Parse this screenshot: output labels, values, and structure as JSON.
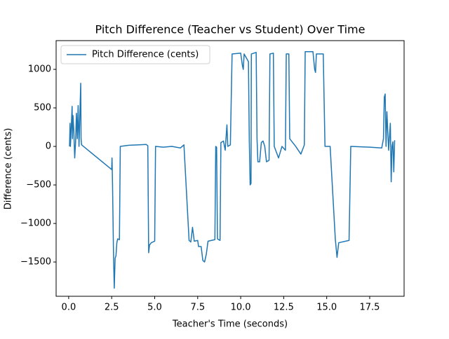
{
  "chart_data": {
    "type": "line",
    "title": "Pitch Difference (Teacher vs Student) Over Time",
    "x_label": "Teacher's Time (seconds)",
    "y_label": "Difference (cents)",
    "legend": "upper left",
    "x": [
      0.05,
      0.08,
      0.1,
      0.15,
      0.2,
      0.22,
      0.25,
      0.3,
      0.35,
      0.4,
      0.45,
      0.5,
      0.55,
      0.6,
      0.65,
      0.7,
      0.72,
      0.75,
      2.5,
      2.52,
      2.55,
      2.6,
      2.62,
      2.65,
      2.7,
      2.75,
      2.8,
      2.85,
      2.95,
      3.0,
      3.5,
      4.0,
      4.5,
      4.6,
      4.65,
      4.7,
      4.8,
      5.0,
      5.05,
      5.5,
      6.0,
      6.5,
      6.7,
      7.0,
      7.1,
      7.2,
      7.3,
      7.5,
      7.55,
      7.7,
      7.8,
      7.9,
      8.0,
      8.1,
      8.5,
      8.55,
      8.6,
      8.65,
      8.8,
      8.85,
      9.0,
      9.1,
      9.2,
      9.25,
      9.4,
      9.5,
      10.0,
      10.1,
      10.15,
      10.2,
      10.45,
      10.5,
      10.55,
      10.6,
      10.62,
      10.9,
      10.95,
      11.0,
      11.1,
      11.2,
      11.3,
      11.4,
      11.5,
      11.65,
      11.7,
      11.9,
      11.95,
      12.2,
      12.4,
      12.6,
      12.65,
      12.8,
      12.85,
      13.2,
      13.5,
      13.7,
      13.75,
      14.2,
      14.3,
      14.35,
      14.4,
      14.8,
      14.9,
      15.2,
      15.5,
      15.6,
      15.7,
      16.3,
      16.4,
      17.5,
      18.2,
      18.3,
      18.35,
      18.4,
      18.45,
      18.5,
      18.6,
      18.7,
      18.75,
      18.8,
      18.85,
      18.9,
      18.95
    ],
    "series": [
      {
        "name": "Pitch Difference (cents)",
        "color": "#1f77b4",
        "values": [
          0,
          300,
          0,
          250,
          520,
          100,
          400,
          200,
          -150,
          50,
          430,
          100,
          530,
          0,
          400,
          820,
          100,
          20,
          -300,
          -150,
          -500,
          -1300,
          -1550,
          -1840,
          -1450,
          -1420,
          -1250,
          -1200,
          -1210,
          0,
          15,
          20,
          25,
          10,
          -1380,
          -1280,
          -1250,
          -1230,
          0,
          -10,
          0,
          -20,
          20,
          -1220,
          -1240,
          -1050,
          -1230,
          -1220,
          -1300,
          -1300,
          -1480,
          -1500,
          -1400,
          -1230,
          -1210,
          0,
          -10,
          -1200,
          -1220,
          50,
          70,
          -50,
          280,
          0,
          20,
          1200,
          1210,
          1050,
          1000,
          1200,
          1100,
          80,
          -500,
          -480,
          1200,
          1220,
          100,
          -200,
          -200,
          50,
          70,
          0,
          -200,
          -180,
          1200,
          1210,
          0,
          -150,
          0,
          -50,
          1200,
          1200,
          100,
          0,
          -100,
          20,
          1230,
          1230,
          1000,
          960,
          1200,
          1200,
          0,
          0,
          -1200,
          -1440,
          -1250,
          -1220,
          0,
          -10,
          -20,
          100,
          640,
          680,
          0,
          450,
          -50,
          300,
          -460,
          0,
          60,
          -330,
          80
        ]
      }
    ],
    "xlim": [
      -0.73,
      19.5
    ],
    "ylim": [
      -1945,
      1373
    ],
    "xticks": [
      {
        "value": 0,
        "label": "0.0"
      },
      {
        "value": 2.5,
        "label": "2.5"
      },
      {
        "value": 5,
        "label": "5.0"
      },
      {
        "value": 7.5,
        "label": "7.5"
      },
      {
        "value": 10,
        "label": "10.0"
      },
      {
        "value": 12.5,
        "label": "12.5"
      },
      {
        "value": 15,
        "label": "15.0"
      },
      {
        "value": 17.5,
        "label": "17.5"
      }
    ],
    "yticks": [
      {
        "value": -1500,
        "label": "−1500"
      },
      {
        "value": -1000,
        "label": "−1000"
      },
      {
        "value": -500,
        "label": "−500"
      },
      0,
      500,
      1000
    ]
  }
}
